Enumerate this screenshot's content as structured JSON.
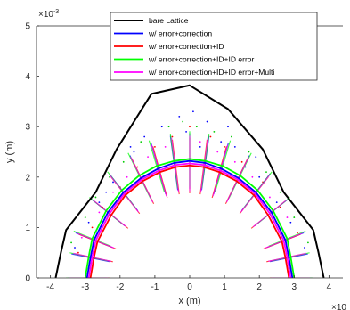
{
  "chart_data": {
    "type": "line",
    "xlabel": "x (m)",
    "ylabel": "y (m)",
    "x_exponent_label": "×10",
    "y_exponent_label": "×10",
    "y_exponent_power": "-3",
    "xlim": [
      -4.4,
      4.4
    ],
    "ylim": [
      0,
      5
    ],
    "x_ticks": [
      -4,
      -3,
      -2,
      -1,
      0,
      1,
      2,
      3,
      4
    ],
    "y_ticks": [
      0,
      1,
      2,
      3,
      4,
      5
    ],
    "grid": false,
    "legend_position": "top-right",
    "series": [
      {
        "name": "bare Lattice",
        "color": "#000000",
        "width": 2,
        "x": [
          -3.85,
          -3.7,
          -3.55,
          -2.7,
          -2.1,
          -1.1,
          0,
          1.1,
          2.1,
          2.7,
          3.55,
          3.7,
          3.85
        ],
        "y": [
          0,
          0.5,
          0.95,
          1.7,
          2.55,
          3.65,
          3.82,
          3.35,
          2.55,
          1.7,
          0.95,
          0.5,
          0
        ]
      },
      {
        "name": "w/ error+correction",
        "color": "#0000ff",
        "width": 1.8,
        "x": [
          -2.95,
          -2.85,
          -2.75,
          -2.35,
          -1.9,
          -1.4,
          -0.9,
          -0.45,
          0,
          0.45,
          0.9,
          1.4,
          1.9,
          2.35,
          2.75,
          2.85,
          2.95
        ],
        "y": [
          0,
          0.4,
          0.75,
          1.3,
          1.7,
          1.98,
          2.17,
          2.28,
          2.32,
          2.28,
          2.17,
          1.98,
          1.7,
          1.3,
          0.75,
          0.4,
          0
        ]
      },
      {
        "name": "w/ error+correction+ID",
        "color": "#ff0000",
        "width": 1.8,
        "x": [
          -2.85,
          -2.75,
          -2.65,
          -2.25,
          -1.85,
          -1.35,
          -0.85,
          -0.4,
          0,
          0.4,
          0.85,
          1.35,
          1.85,
          2.25,
          2.65,
          2.75,
          2.85
        ],
        "y": [
          0,
          0.4,
          0.72,
          1.25,
          1.64,
          1.92,
          2.1,
          2.2,
          2.23,
          2.2,
          2.1,
          1.92,
          1.64,
          1.25,
          0.72,
          0.4,
          0
        ]
      },
      {
        "name": "w/ error+correction+ID+ID error",
        "color": "#00ff00",
        "width": 1.8,
        "x": [
          -3.0,
          -2.9,
          -2.8,
          -2.4,
          -1.95,
          -1.45,
          -0.95,
          -0.45,
          0,
          0.45,
          0.95,
          1.45,
          1.95,
          2.4,
          2.8,
          2.9,
          3.0
        ],
        "y": [
          0,
          0.42,
          0.78,
          1.33,
          1.74,
          2.03,
          2.22,
          2.32,
          2.36,
          2.32,
          2.22,
          2.03,
          1.74,
          1.33,
          0.78,
          0.42,
          0
        ]
      },
      {
        "name": "w/ error+correction+ID+ID error+Multi",
        "color": "#ff00ff",
        "width": 1.8,
        "x": [
          -2.9,
          -2.8,
          -2.7,
          -2.3,
          -1.88,
          -1.38,
          -0.88,
          -0.42,
          0,
          0.42,
          0.88,
          1.38,
          1.88,
          2.3,
          2.7,
          2.8,
          2.9
        ],
        "y": [
          0,
          0.41,
          0.74,
          1.28,
          1.67,
          1.95,
          2.13,
          2.24,
          2.27,
          2.24,
          2.13,
          1.95,
          1.67,
          1.28,
          0.74,
          0.41,
          0
        ]
      }
    ],
    "scatter_series": [
      {
        "color": "#0000ff",
        "x": [
          -3.3,
          -2.9,
          -2.6,
          -2.2,
          -1.7,
          -1.3,
          -0.8,
          -0.3,
          0.1,
          0.5,
          0.9,
          1.3,
          1.6,
          2.0,
          2.5,
          2.9,
          3.3,
          -0.1,
          0.3,
          1.1,
          1.9,
          -1.6,
          -2.4
        ],
        "y": [
          0.6,
          1.1,
          1.5,
          1.9,
          2.6,
          2.8,
          3.0,
          3.2,
          3.3,
          3.1,
          2.7,
          2.6,
          2.2,
          2.0,
          1.5,
          1.1,
          0.6,
          2.9,
          2.6,
          3.0,
          2.4,
          2.5,
          1.7
        ]
      },
      {
        "color": "#00cc00",
        "x": [
          -3.4,
          -3.0,
          -2.7,
          -2.3,
          -1.9,
          -1.4,
          -0.6,
          -0.2,
          0.2,
          0.7,
          1.2,
          1.7,
          2.2,
          2.6,
          3.0,
          3.4
        ],
        "y": [
          0.7,
          1.2,
          1.6,
          2.0,
          2.3,
          2.7,
          3.0,
          3.1,
          3.0,
          2.9,
          2.8,
          2.5,
          2.1,
          1.7,
          1.2,
          0.7
        ]
      },
      {
        "color": "#ff0000",
        "x": [
          -3.2,
          -2.8,
          -2.5,
          -2.0,
          -1.5,
          -1.0,
          -0.5,
          0.0,
          0.6,
          1.0,
          1.5,
          2.1,
          2.6,
          3.1
        ],
        "y": [
          0.5,
          1.0,
          1.4,
          1.8,
          2.2,
          2.6,
          2.8,
          3.0,
          2.8,
          2.6,
          2.3,
          1.9,
          1.4,
          0.9
        ]
      },
      {
        "color": "#ff00ff",
        "x": [
          -3.1,
          -2.6,
          -2.2,
          -1.8,
          -1.2,
          -0.7,
          0.3,
          0.8,
          1.3,
          1.8,
          2.3,
          2.8
        ],
        "y": [
          0.8,
          1.3,
          1.7,
          2.0,
          2.4,
          2.6,
          2.7,
          2.5,
          2.3,
          2.0,
          1.6,
          1.2
        ]
      }
    ]
  }
}
